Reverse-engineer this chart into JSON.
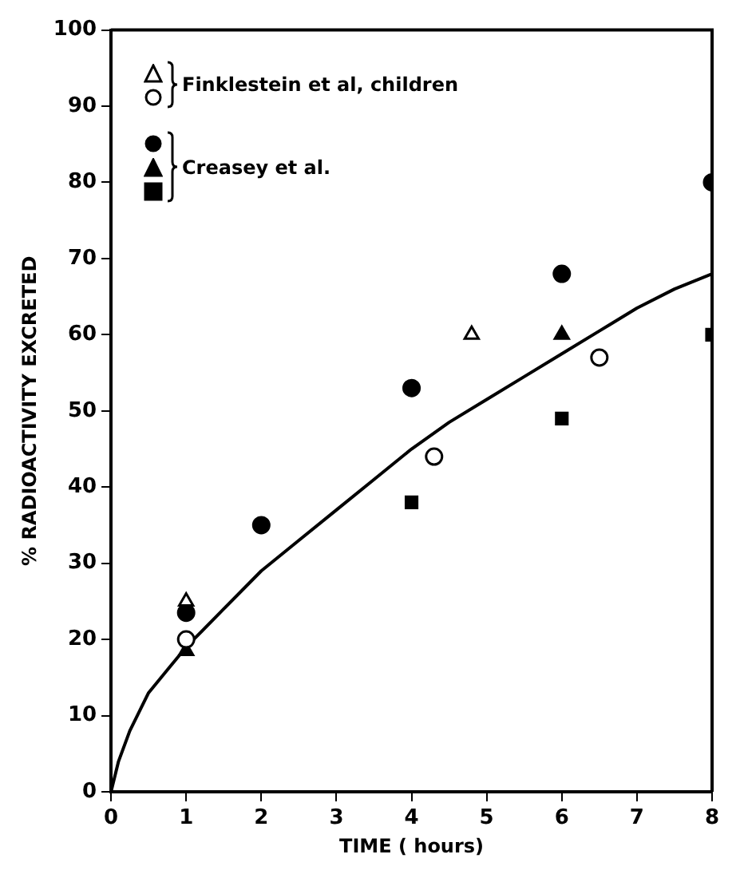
{
  "chart_data": {
    "type": "scatter",
    "xlabel": "TIME ( hours)",
    "ylabel": "% RADIOACTIVITY EXCRETED",
    "xlim": [
      0,
      8
    ],
    "xticks": [
      0,
      1,
      2,
      3,
      4,
      5,
      6,
      7,
      8
    ],
    "ylim": [
      0,
      100
    ],
    "yticks": [
      0,
      10,
      20,
      30,
      40,
      50,
      60,
      70,
      80,
      90,
      100
    ],
    "grid": false,
    "legend": "top left",
    "series": [
      {
        "name": "Finklestein et al, children",
        "color": "#ffffff",
        "marker": "triangle",
        "x": [
          1,
          4.8
        ],
        "values": [
          25,
          60
        ]
      },
      {
        "color": "#ffffff",
        "marker": "circle",
        "x": [
          1,
          4.3,
          6.5
        ],
        "values": [
          20,
          44,
          57
        ]
      },
      {
        "color": "#000000",
        "marker": "circle",
        "x": [
          1,
          2,
          4,
          6,
          8
        ],
        "values": [
          23.5,
          35,
          53,
          68,
          80
        ]
      },
      {
        "name": "Creasey et al.",
        "color": "#000000",
        "marker": "triangle",
        "x": [
          1,
          6
        ],
        "values": [
          18.5,
          60
        ]
      },
      {
        "color": "#000000",
        "marker": "square",
        "x": [
          4,
          6,
          8
        ],
        "values": [
          38,
          49,
          60
        ]
      },
      {
        "type": "line",
        "color": "#000000",
        "marker": "none",
        "x": [
          0,
          0.1,
          0.25,
          0.5,
          0.75,
          1,
          1.5,
          2,
          2.5,
          3,
          3.5,
          4,
          4.5,
          5,
          5.5,
          6,
          6.5,
          7,
          7.5,
          8
        ],
        "values": [
          0,
          4,
          8,
          13,
          16,
          19,
          24,
          29,
          33,
          37,
          41,
          45,
          48.5,
          51.5,
          54.5,
          57.5,
          60.5,
          63.5,
          66,
          68
        ]
      }
    ]
  }
}
